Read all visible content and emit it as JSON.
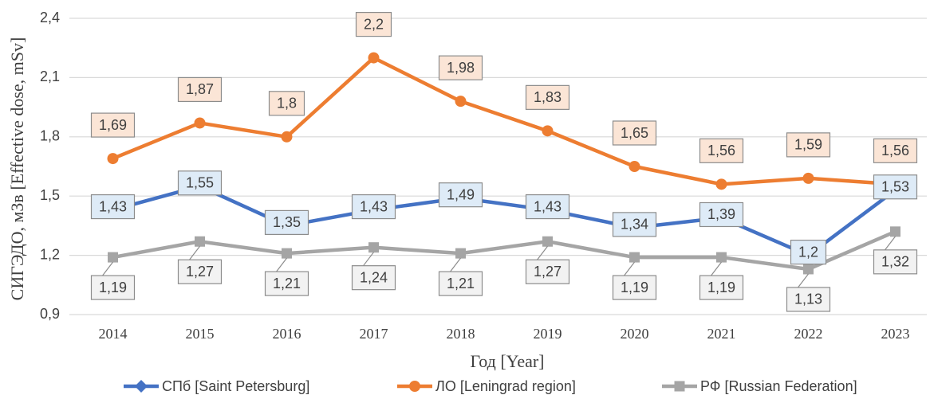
{
  "chart_data": {
    "type": "line",
    "y_label": "СИГЭДО, мЗв [Effective dose, mSv]",
    "x_label": "Год [Year]",
    "categories": [
      "2014",
      "2015",
      "2016",
      "2017",
      "2018",
      "2019",
      "2020",
      "2021",
      "2022",
      "2023"
    ],
    "ylim": [
      0.9,
      2.4
    ],
    "yticks": [
      {
        "value": 0.9,
        "label": "0,9"
      },
      {
        "value": 1.2,
        "label": "1,2"
      },
      {
        "value": 1.5,
        "label": "1,5"
      },
      {
        "value": 1.8,
        "label": "1,8"
      },
      {
        "value": 2.1,
        "label": "2,1"
      },
      {
        "value": 2.4,
        "label": "2,4"
      }
    ],
    "grid": true,
    "legend": "bottom",
    "series": [
      {
        "name": "СПб [Saint Petersburg]",
        "color": "#4472c4",
        "marker": "diamond",
        "values": [
          1.43,
          1.55,
          1.35,
          1.43,
          1.49,
          1.43,
          1.34,
          1.39,
          1.2,
          1.53
        ],
        "value_labels": [
          "1,43",
          "1,55",
          "1,35",
          "1,43",
          "1,49",
          "1,43",
          "1,34",
          "1,39",
          "1,2",
          "1,53"
        ]
      },
      {
        "name": "ЛО [Leningrad region]",
        "color": "#ed7d31",
        "marker": "circle",
        "values": [
          1.69,
          1.87,
          1.8,
          2.2,
          1.98,
          1.83,
          1.65,
          1.56,
          1.59,
          1.56
        ],
        "value_labels": [
          "1,69",
          "1,87",
          "1,8",
          "2,2",
          "1,98",
          "1,83",
          "1,65",
          "1,56",
          "1,59",
          "1,56"
        ]
      },
      {
        "name": "РФ [Russian Federation]",
        "color": "#a5a5a5",
        "marker": "square",
        "values": [
          1.19,
          1.27,
          1.21,
          1.24,
          1.21,
          1.27,
          1.19,
          1.19,
          1.13,
          1.32
        ],
        "value_labels": [
          "1,19",
          "1,27",
          "1,21",
          "1,24",
          "1,21",
          "1,27",
          "1,19",
          "1,19",
          "1,13",
          "1,32"
        ]
      }
    ]
  }
}
